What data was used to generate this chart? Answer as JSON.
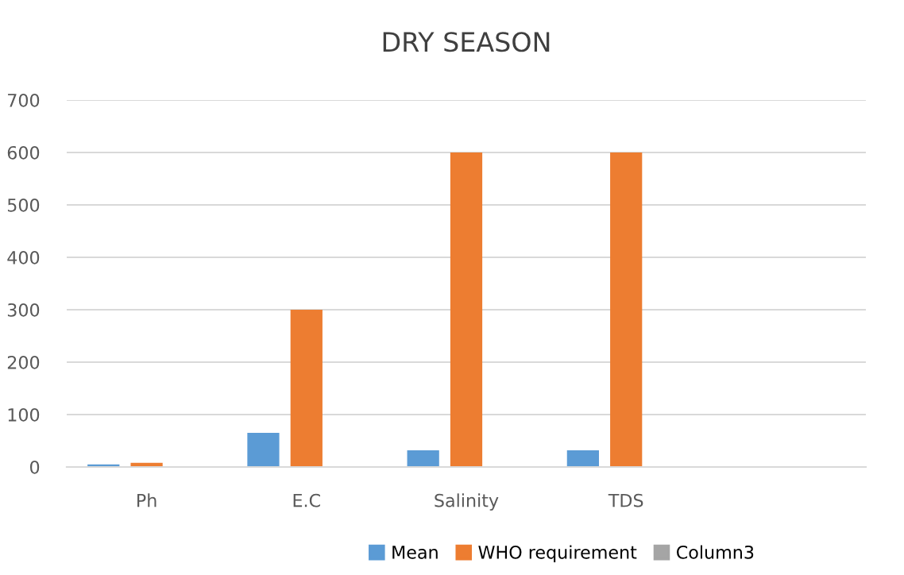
{
  "chart_data": {
    "type": "bar",
    "title": "DRY SEASON",
    "categories": [
      "Ph",
      "E.C",
      "Salinity",
      "TDS",
      null
    ],
    "series": [
      {
        "name": "Mean",
        "color": "#5b9bd5",
        "values": [
          5,
          65,
          32,
          32,
          null
        ]
      },
      {
        "name": "WHO requirement",
        "color": "#ed7d31",
        "values": [
          8,
          300,
          600,
          600,
          null
        ]
      },
      {
        "name": "Column3",
        "color": "#a5a5a5",
        "values": [
          null,
          null,
          null,
          null,
          null
        ]
      }
    ],
    "ylim": [
      0,
      700
    ],
    "yticks": [
      0,
      100,
      200,
      300,
      400,
      500,
      600,
      700
    ],
    "grid": "y",
    "legend": "bottom"
  }
}
